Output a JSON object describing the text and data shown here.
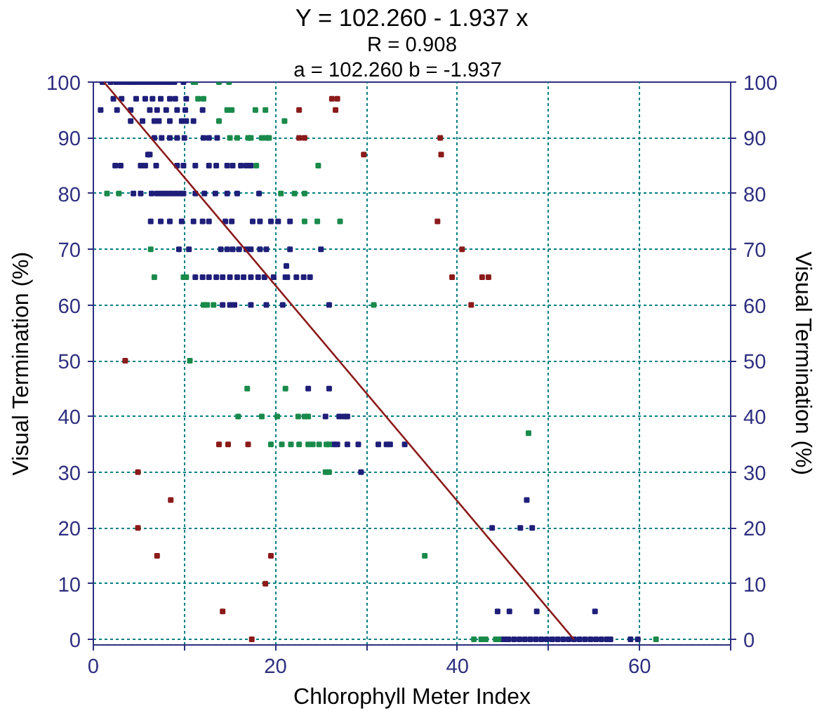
{
  "chart_data": {
    "type": "scatter",
    "title": "Y = 102.260 - 1.937 x",
    "subtitle": "R = 0.908",
    "annotations": [
      "a = 102.260      b = -1.937"
    ],
    "xlabel": "Chlorophyll Meter Index",
    "ylabel": "Visual Termination (%)",
    "y2label": "Visual Termination (%)",
    "xlim": [
      0,
      70
    ],
    "xticks": [
      0,
      {
        "value": 10,
        "label": null
      },
      20,
      {
        "value": 30,
        "label": null
      },
      40,
      {
        "value": 50,
        "label": null
      },
      60,
      {
        "value": 70,
        "label": null
      }
    ],
    "ylim": [
      -1,
      100
    ],
    "yticks": [
      0,
      10,
      20,
      30,
      40,
      50,
      60,
      70,
      80,
      90,
      100
    ],
    "y2lim": [
      -1,
      100
    ],
    "y2ticks": [
      0,
      10,
      20,
      30,
      40,
      50,
      60,
      70,
      80,
      90,
      100
    ],
    "grid": true,
    "marker": "square",
    "series": [
      {
        "color": "#1f1f7a",
        "x": [
          1.0,
          1.9,
          2.5,
          3.0,
          3.5,
          4.0,
          4.5,
          5.0,
          5.5,
          6.0,
          6.5,
          7.0,
          7.5,
          8.0,
          8.4,
          8.9,
          9.9,
          2.2,
          3.1,
          4.7,
          5.7,
          6.5,
          7.4,
          8.4,
          9.0,
          10.2,
          0.8,
          2.6,
          4.1,
          6.2,
          7.0,
          8.0,
          9.2,
          10.1,
          12.0,
          4.1,
          5.4,
          6.7,
          7.2,
          8.4,
          9.7,
          10.2,
          11.0,
          6.7,
          7.5,
          8.4,
          9.2,
          10.0,
          12.1,
          12.7,
          13.6,
          6.0,
          6.2,
          2.4,
          3.0,
          5.2,
          5.7,
          6.9,
          9.2,
          9.9,
          11.2,
          12.7,
          13.5,
          14.7,
          15.3,
          16.2,
          16.8,
          17.3,
          4.4,
          5.2,
          6.4,
          7.0,
          7.5,
          8.0,
          8.5,
          9.0,
          9.5,
          9.9,
          11.2,
          12.2,
          13.4,
          14.7,
          15.8,
          18.2,
          6.3,
          7.4,
          8.4,
          9.7,
          11.0,
          12.0,
          12.7,
          14.5,
          15.2,
          17.5,
          18.3,
          19.5,
          20.3,
          21.6,
          9.4,
          10.5,
          14.0,
          14.7,
          15.3,
          16.0,
          16.8,
          17.3,
          18.3,
          19.0,
          21.6,
          25.0,
          21.2,
          11.2,
          12.0,
          12.7,
          13.5,
          14.2,
          15.0,
          15.8,
          16.5,
          17.3,
          18.1,
          18.8,
          19.8,
          21.1,
          21.3,
          22.3,
          23.1,
          23.8,
          14.2,
          15.0,
          15.5,
          17.3,
          19.0,
          20.8,
          25.9,
          23.6,
          25.9,
          25.5,
          27.0,
          27.5,
          27.9,
          26.4,
          26.8,
          27.9,
          29.1,
          31.3,
          32.2,
          32.6,
          34.2,
          29.4,
          47.6,
          43.8,
          46.9,
          48.2,
          44.4,
          45.7,
          48.7,
          55.1,
          44.9,
          45.3,
          45.6,
          46.2,
          46.8,
          47.4,
          48.0,
          48.6,
          49.2,
          49.8,
          50.4,
          51.0,
          51.6,
          52.2,
          52.8,
          53.4,
          54.0,
          54.6,
          55.2,
          55.8,
          56.4,
          56.8,
          59.0,
          59.8
        ],
        "values": [
          100,
          100,
          100,
          100,
          100,
          100,
          100,
          100,
          100,
          100,
          100,
          100,
          100,
          100,
          100,
          100,
          100,
          97,
          97,
          97,
          97,
          97,
          97,
          97,
          97,
          97,
          95,
          95,
          95,
          95,
          95,
          95,
          95,
          95,
          95,
          93,
          93,
          93,
          93,
          93,
          93,
          93,
          93,
          90,
          90,
          90,
          90,
          90,
          90,
          90,
          90,
          87,
          87,
          85,
          85,
          85,
          85,
          85,
          85,
          85,
          85,
          85,
          85,
          85,
          85,
          85,
          85,
          85,
          80,
          80,
          80,
          80,
          80,
          80,
          80,
          80,
          80,
          80,
          80,
          80,
          80,
          80,
          80,
          80,
          75,
          75,
          75,
          75,
          75,
          75,
          75,
          75,
          75,
          75,
          75,
          75,
          75,
          75,
          70,
          70,
          70,
          70,
          70,
          70,
          70,
          70,
          70,
          70,
          70,
          70,
          67,
          65,
          65,
          65,
          65,
          65,
          65,
          65,
          65,
          65,
          65,
          65,
          65,
          65,
          65,
          65,
          65,
          65,
          60,
          60,
          60,
          60,
          60,
          60,
          60,
          45,
          45,
          40,
          40,
          40,
          40,
          35,
          35,
          35,
          35,
          35,
          35,
          35,
          35,
          30,
          25,
          20,
          20,
          20,
          5,
          5,
          5,
          5,
          0,
          0,
          0,
          0,
          0,
          0,
          0,
          0,
          0,
          0,
          0,
          0,
          0,
          0,
          0,
          0,
          0,
          0,
          0,
          0,
          0,
          0,
          0,
          0
        ]
      },
      {
        "color": "#1a8a4a",
        "x": [
          11.0,
          11.2,
          13.8,
          14.9,
          11.5,
          12.1,
          14.7,
          15.2,
          17.8,
          18.9,
          13.8,
          21.0,
          15.0,
          15.8,
          17.0,
          17.3,
          18.5,
          19.0,
          19.3,
          17.9,
          24.7,
          1.5,
          2.8,
          20.6,
          22.1,
          23.2,
          23.2,
          24.6,
          27.1,
          6.3,
          6.7,
          9.9,
          10.2,
          12.1,
          12.5,
          13.2,
          30.8,
          10.6,
          16.9,
          21.1,
          15.9,
          18.5,
          20.2,
          22.5,
          23.2,
          23.6,
          19.5,
          20.7,
          21.7,
          22.6,
          23.6,
          24.1,
          24.8,
          25.6,
          25.9,
          25.5,
          25.9,
          47.8,
          36.4,
          41.8,
          42.6,
          43.1,
          44.2,
          44.5,
          61.8
        ],
        "values": [
          100,
          100,
          100,
          100,
          97,
          97,
          95,
          95,
          95,
          95,
          93,
          93,
          90,
          90,
          90,
          90,
          90,
          90,
          90,
          85,
          85,
          80,
          80,
          80,
          80,
          80,
          75,
          75,
          75,
          70,
          65,
          65,
          65,
          60,
          60,
          60,
          60,
          50,
          45,
          45,
          40,
          40,
          40,
          40,
          40,
          40,
          35,
          35,
          35,
          35,
          35,
          35,
          35,
          35,
          35,
          30,
          30,
          37,
          15,
          0,
          0,
          0,
          0,
          0,
          0
        ]
      },
      {
        "color": "#8b1a1a",
        "x": [
          26.2,
          26.8,
          22.6,
          26.6,
          22.6,
          23.2,
          29.7,
          38.1,
          38.2,
          37.8,
          40.5,
          39.4,
          42.7,
          43.4,
          41.5,
          3.5,
          13.8,
          14.8,
          17.0,
          4.9,
          8.5,
          4.9,
          7.0,
          19.5,
          18.9,
          14.2,
          17.4
        ],
        "values": [
          97,
          97,
          95,
          95,
          90,
          90,
          87,
          90,
          87,
          75,
          70,
          65,
          65,
          65,
          60,
          50,
          35,
          35,
          35,
          30,
          25,
          20,
          15,
          15,
          10,
          5,
          0
        ]
      },
      {
        "type": "line",
        "marker": "none",
        "color": "#8b1a1a",
        "x": [
          1.167,
          52.79
        ],
        "values": [
          100,
          0
        ]
      }
    ]
  }
}
